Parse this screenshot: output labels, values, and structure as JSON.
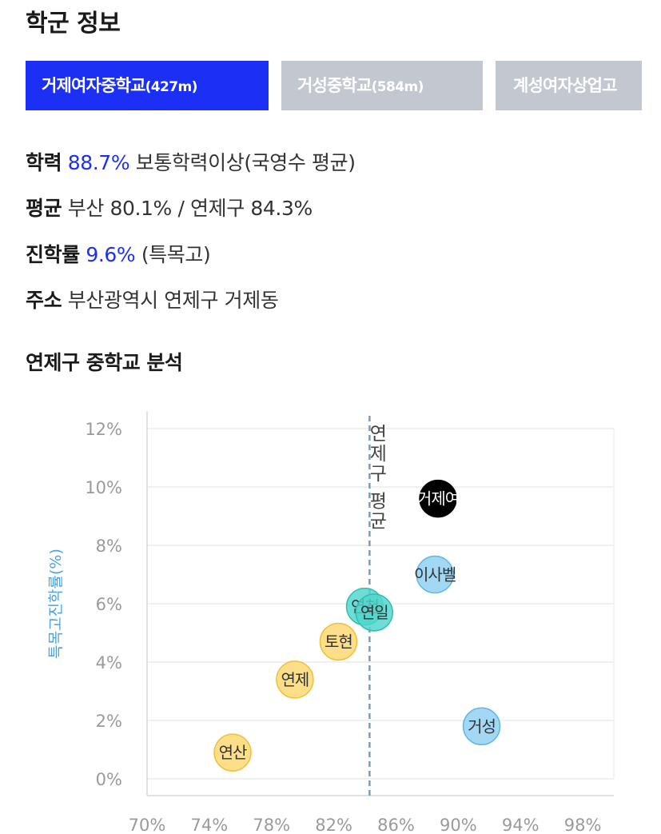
{
  "section_title": "학군 정보",
  "tabs": [
    {
      "name": "거제여자중학교",
      "distance": "(427m)",
      "active": true
    },
    {
      "name": "거성중학교",
      "distance": "(584m)",
      "active": false
    },
    {
      "name": "계성여자상업고",
      "distance": "",
      "active": false
    }
  ],
  "info": {
    "achievement": {
      "key": "학력",
      "value": "88.7%",
      "desc": "보통학력이상(국영수 평균)"
    },
    "average": {
      "key": "평균",
      "value": "부산 80.1% / 연제구 84.3%"
    },
    "advancement": {
      "key": "진학률",
      "value": "9.6%",
      "desc": "(특목고)"
    },
    "address": {
      "key": "주소",
      "value": "부산광역시 연제구 거제동"
    }
  },
  "analysis_title": "연제구 중학교 분석",
  "colors": {
    "accent": "#1b2ff5",
    "tab_inactive": "#c3c7d0",
    "highlight_bubble": "#000000",
    "blue_bubble": "#8fd0f3",
    "teal_bubble": "#4fd6cc",
    "yellow_bubble": "#fcd870",
    "avg_line": "#7b9cb8",
    "axis_label": "#4aa3e0"
  },
  "chart_data": {
    "type": "scatter",
    "title": "",
    "xlabel": "",
    "ylabel": "특목고진학률(%)",
    "xlim": [
      70,
      100
    ],
    "ylim": [
      0,
      12
    ],
    "x_ticks": [
      "70%",
      "74%",
      "78%",
      "82%",
      "86%",
      "90%",
      "94%",
      "98%"
    ],
    "y_ticks": [
      "0%",
      "2%",
      "4%",
      "6%",
      "8%",
      "10%",
      "12%"
    ],
    "grid": true,
    "reference_line": {
      "x": 84.3,
      "label": "연제구 평균"
    },
    "points": [
      {
        "label": "거제여",
        "x": 88.7,
        "y": 9.6,
        "color": "black"
      },
      {
        "label": "이사벨",
        "x": 88.5,
        "y": 7.0,
        "color": "blue"
      },
      {
        "label": "거성",
        "x": 91.5,
        "y": 1.8,
        "color": "blue"
      },
      {
        "label": "연천",
        "x": 84.0,
        "y": 5.9,
        "color": "teal"
      },
      {
        "label": "연일",
        "x": 84.6,
        "y": 5.7,
        "color": "teal"
      },
      {
        "label": "토현",
        "x": 82.3,
        "y": 4.7,
        "color": "yellow"
      },
      {
        "label": "연제",
        "x": 79.5,
        "y": 3.4,
        "color": "yellow"
      },
      {
        "label": "연산",
        "x": 75.5,
        "y": 0.9,
        "color": "yellow"
      }
    ]
  }
}
